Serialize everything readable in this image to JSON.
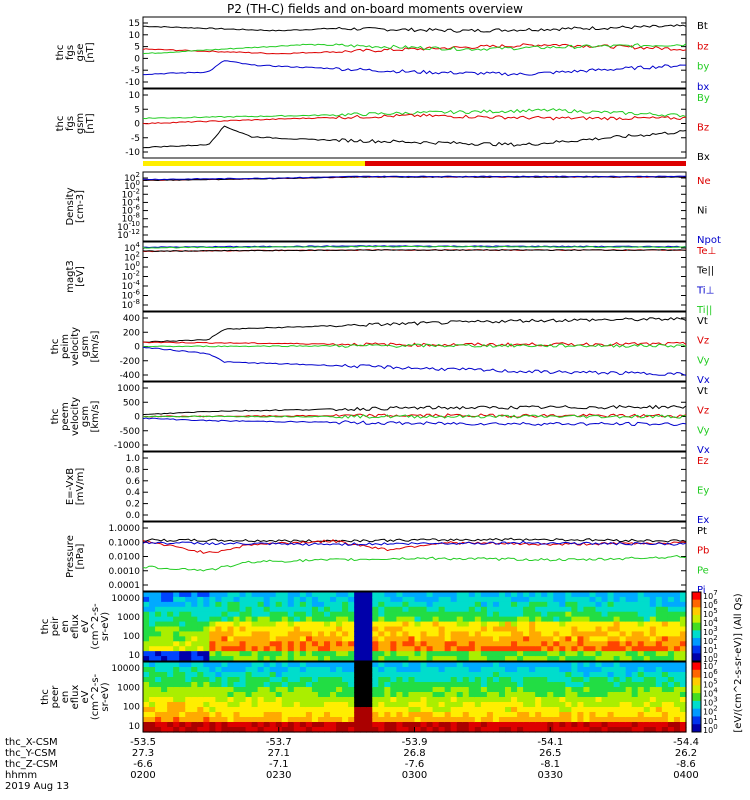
{
  "title": "P2 (TH-C) fields and on-board moments overview",
  "colors": {
    "black": "#000000",
    "red": "#dd0000",
    "green": "#22cc22",
    "blue": "#0000cc",
    "yellow": "#ffee00",
    "barred": "#dd0000"
  },
  "chart_data": [
    {
      "type": "line",
      "panel": "fgs_gse",
      "ylabel": [
        "thc",
        "fgs",
        "gse",
        "[nT]"
      ],
      "yticks": [
        "15",
        "10",
        "5",
        "0",
        "-5",
        "-10"
      ],
      "ylim": [
        -15,
        16
      ],
      "legend": [
        {
          "name": "Bt",
          "color": "#000000"
        },
        {
          "name": "bz",
          "color": "#dd0000"
        },
        {
          "name": "by",
          "color": "#22cc22"
        },
        {
          "name": "bx",
          "color": "#0000cc"
        }
      ],
      "series": [
        {
          "name": "Bt",
          "color": "#000000",
          "x": [
            0,
            0.25,
            0.35,
            0.6,
            0.8,
            1
          ],
          "y": [
            12,
            10,
            11,
            10,
            11,
            12
          ]
        },
        {
          "name": "bz",
          "color": "#dd0000",
          "x": [
            0,
            0.25,
            0.5,
            0.75,
            1
          ],
          "y": [
            2,
            0,
            2,
            4,
            2
          ]
        },
        {
          "name": "by",
          "color": "#22cc22",
          "x": [
            0,
            0.3,
            0.6,
            1
          ],
          "y": [
            0,
            4,
            2,
            4
          ]
        },
        {
          "name": "bx",
          "color": "#0000cc",
          "x": [
            0,
            0.12,
            0.15,
            0.2,
            0.3,
            0.5,
            0.7,
            1
          ],
          "y": [
            -9,
            -8,
            -3,
            -5,
            -6,
            -8,
            -9,
            -5
          ]
        }
      ]
    },
    {
      "type": "line",
      "panel": "fgs_gsm",
      "ylabel": [
        "thc",
        "fgs",
        "gsm",
        "[nT]"
      ],
      "yticks": [
        "10",
        "5",
        "0",
        "-5",
        "-10"
      ],
      "ylim": [
        -14,
        12
      ],
      "legend": [
        {
          "name": "By",
          "color": "#22cc22"
        },
        {
          "name": "Bz",
          "color": "#dd0000"
        },
        {
          "name": "Bx",
          "color": "#000000"
        }
      ],
      "series": [
        {
          "name": "By",
          "color": "#22cc22",
          "x": [
            0,
            0.3,
            0.5,
            0.75,
            1
          ],
          "y": [
            1,
            2,
            3,
            4,
            2
          ]
        },
        {
          "name": "Bz",
          "color": "#dd0000",
          "x": [
            0,
            0.3,
            0.5,
            0.75,
            1
          ],
          "y": [
            -1,
            1,
            2,
            1,
            1
          ]
        },
        {
          "name": "Bx",
          "color": "#000000",
          "x": [
            0,
            0.12,
            0.15,
            0.2,
            0.3,
            0.5,
            0.7,
            1
          ],
          "y": [
            -10,
            -9,
            -2,
            -6,
            -7,
            -8,
            -9,
            -4
          ]
        }
      ]
    },
    {
      "type": "line",
      "panel": "density",
      "ylabel": [
        "Density",
        "[cm-3]"
      ],
      "yticks": [
        "10^2",
        "10^0",
        "10^-2",
        "10^-4",
        "10^-6",
        "10^-8",
        "10^-10",
        "10^-12"
      ],
      "ylim": [
        -12,
        2
      ],
      "log": true,
      "legend": [
        {
          "name": "Ne",
          "color": "#dd0000"
        },
        {
          "name": "Ni",
          "color": "#000000"
        },
        {
          "name": "Npot",
          "color": "#0000cc"
        }
      ],
      "series": [
        {
          "name": "Ne",
          "color": "#dd0000",
          "x": [
            0,
            0.2,
            0.4,
            1
          ],
          "y": [
            0.3,
            0.6,
            1,
            1
          ]
        },
        {
          "name": "Ni",
          "color": "#000000",
          "x": [
            0,
            0.2,
            0.4,
            1
          ],
          "y": [
            0.3,
            0.6,
            1,
            1
          ]
        },
        {
          "name": "Npot",
          "color": "#0000cc",
          "x": [
            0,
            0.2,
            0.4,
            1
          ],
          "y": [
            0.5,
            0.7,
            1.1,
            1.1
          ]
        }
      ]
    },
    {
      "type": "line",
      "panel": "temperature",
      "ylabel": [
        "magt3",
        "[eV]"
      ],
      "yticks": [
        "10^4",
        "10^2",
        "10^0",
        "10^-2",
        "10^-4",
        "10^-6",
        "10^-8"
      ],
      "ylim": [
        -8,
        4
      ],
      "log": true,
      "legend": [
        {
          "name": "Te⊥",
          "color": "#dd0000"
        },
        {
          "name": "Te||",
          "color": "#000000"
        },
        {
          "name": "Ti⊥",
          "color": "#0000cc"
        },
        {
          "name": "Ti||",
          "color": "#22cc22"
        }
      ],
      "series": [
        {
          "name": "Te⊥",
          "color": "#dd0000",
          "x": [
            0,
            0.4,
            1
          ],
          "y": [
            2.4,
            2.6,
            2.6
          ]
        },
        {
          "name": "Te||",
          "color": "#000000",
          "x": [
            0,
            0.4,
            1
          ],
          "y": [
            2.4,
            2.6,
            2.6
          ]
        },
        {
          "name": "Ti⊥",
          "color": "#0000cc",
          "x": [
            0,
            0.4,
            1
          ],
          "y": [
            3.1,
            3.3,
            3.2
          ]
        },
        {
          "name": "Ti||",
          "color": "#22cc22",
          "x": [
            0,
            0.4,
            1
          ],
          "y": [
            3.0,
            3.2,
            3.1
          ]
        }
      ]
    },
    {
      "type": "line",
      "panel": "peim_velocity",
      "ylabel": [
        "thc",
        "peim",
        "velocity",
        "gsm",
        "[km/s]"
      ],
      "yticks": [
        "400",
        "200",
        "0",
        "-200",
        "-400"
      ],
      "ylim": [
        -400,
        400
      ],
      "legend": [
        {
          "name": "Vt",
          "color": "#000000"
        },
        {
          "name": "Vz",
          "color": "#dd0000"
        },
        {
          "name": "Vy",
          "color": "#22cc22"
        },
        {
          "name": "Vx",
          "color": "#0000cc"
        }
      ],
      "series": [
        {
          "name": "Vt",
          "color": "#000000",
          "x": [
            0,
            0.12,
            0.15,
            0.4,
            0.7,
            1
          ],
          "y": [
            50,
            80,
            200,
            250,
            300,
            320
          ]
        },
        {
          "name": "Vz",
          "color": "#dd0000",
          "x": [
            0,
            0.5,
            1
          ],
          "y": [
            50,
            20,
            30
          ]
        },
        {
          "name": "Vy",
          "color": "#22cc22",
          "x": [
            0,
            0.5,
            1
          ],
          "y": [
            0,
            10,
            10
          ]
        },
        {
          "name": "Vx",
          "color": "#0000cc",
          "x": [
            0,
            0.12,
            0.15,
            0.4,
            0.7,
            1
          ],
          "y": [
            -10,
            -80,
            -180,
            -230,
            -290,
            -320
          ]
        }
      ]
    },
    {
      "type": "line",
      "panel": "peem_velocity",
      "ylabel": [
        "thc",
        "peem",
        "velocity",
        "gsm",
        "[km/s]"
      ],
      "yticks": [
        "1000",
        "500",
        "0",
        "-500",
        "-1000"
      ],
      "ylim": [
        -1000,
        1000
      ],
      "legend": [
        {
          "name": "Vt",
          "color": "#000000"
        },
        {
          "name": "Vz",
          "color": "#dd0000"
        },
        {
          "name": "Vy",
          "color": "#22cc22"
        },
        {
          "name": "Vx",
          "color": "#0000cc"
        }
      ],
      "series": [
        {
          "name": "Vt",
          "color": "#000000",
          "x": [
            0,
            0.12,
            0.5,
            1
          ],
          "y": [
            50,
            150,
            250,
            280
          ]
        },
        {
          "name": "Vz",
          "color": "#dd0000",
          "x": [
            0,
            0.5,
            1
          ],
          "y": [
            0,
            30,
            20
          ]
        },
        {
          "name": "Vy",
          "color": "#22cc22",
          "x": [
            0,
            0.5,
            1
          ],
          "y": [
            0,
            0,
            0
          ]
        },
        {
          "name": "Vx",
          "color": "#0000cc",
          "x": [
            0,
            0.12,
            0.5,
            1
          ],
          "y": [
            -50,
            -120,
            -200,
            -220
          ]
        }
      ]
    },
    {
      "type": "line",
      "panel": "efield",
      "ylabel": [
        "E=-VxB",
        "[mV/m]"
      ],
      "yticks": [
        "1.0",
        "0.8",
        "0.6",
        "0.4",
        "0.2",
        "0.0"
      ],
      "ylim": [
        0,
        1
      ],
      "legend": [
        {
          "name": "Ez",
          "color": "#dd0000"
        },
        {
          "name": "Ey",
          "color": "#22cc22"
        },
        {
          "name": "Ex",
          "color": "#0000cc"
        }
      ],
      "series": []
    },
    {
      "type": "line",
      "panel": "pressure",
      "ylabel": [
        "Pressure",
        "[nPa]"
      ],
      "yticks": [
        "1.0000",
        "0.1000",
        "0.0100",
        "0.0010",
        "0.0001"
      ],
      "ylim": [
        -4,
        0
      ],
      "log": true,
      "legend": [
        {
          "name": "Pt",
          "color": "#000000"
        },
        {
          "name": "Pb",
          "color": "#dd0000"
        },
        {
          "name": "Pe",
          "color": "#22cc22"
        },
        {
          "name": "Pi",
          "color": "#0000cc"
        }
      ],
      "series": [
        {
          "name": "Pt",
          "color": "#000000",
          "x": [
            0,
            0.3,
            0.7,
            1
          ],
          "y": [
            -1.05,
            -1.1,
            -1.0,
            -1.1
          ]
        },
        {
          "name": "Pb",
          "color": "#dd0000",
          "x": [
            0,
            0.12,
            0.2,
            0.35,
            0.45,
            0.55,
            0.75,
            1
          ],
          "y": [
            -1.1,
            -1.8,
            -1.3,
            -1.1,
            -1.6,
            -1.2,
            -1.3,
            -1.2
          ]
        },
        {
          "name": "Pe",
          "color": "#22cc22",
          "x": [
            0,
            0.12,
            0.2,
            0.5,
            0.8,
            1
          ],
          "y": [
            -2.6,
            -2.8,
            -2.3,
            -2.1,
            -2.2,
            -2.0
          ]
        },
        {
          "name": "Pi",
          "color": "#0000cc",
          "x": [
            0,
            0.3,
            0.7,
            1
          ],
          "y": [
            -1.2,
            -1.3,
            -1.2,
            -1.3
          ]
        }
      ]
    },
    {
      "type": "heatmap",
      "panel": "peir_spectrogram",
      "ylabel": [
        "thc",
        "peir",
        "en",
        "eflux",
        "eV",
        "(cm^2-s-",
        "sr-eV)"
      ],
      "yticks": [
        "10000",
        "1000",
        "100",
        "10"
      ]
    },
    {
      "type": "heatmap",
      "panel": "peer_spectrogram",
      "ylabel": [
        "thc",
        "peer",
        "en",
        "eflux",
        "eV",
        "(cm^2-s-",
        "sr-eV)"
      ],
      "yticks": [
        "10000",
        "1000",
        "100",
        "10"
      ]
    }
  ],
  "colorbar": {
    "label": "[eV/(cm^2-s-sr-eV)] (All Qs)",
    "ticks_top": [
      "10^7",
      "10^6",
      "10^5",
      "10^4",
      "10^3",
      "10^2",
      "10^1",
      "10^0"
    ],
    "ticks_bottom": [
      "10^7",
      "10^6",
      "10^5",
      "10^4",
      "10^3",
      "10^2",
      "10^1",
      "10^0"
    ]
  },
  "time_axis": {
    "rows": [
      {
        "label": "thc_X-CSM",
        "values": [
          "-53.5",
          "-53.7",
          "-53.9",
          "-54.1",
          "-54.4"
        ]
      },
      {
        "label": "thc_Y-CSM",
        "values": [
          "27.3",
          "27.1",
          "26.8",
          "26.5",
          "26.2"
        ]
      },
      {
        "label": "thc_Z-CSM",
        "values": [
          "-6.6",
          "-7.1",
          "-7.6",
          "-8.1",
          "-8.6"
        ]
      },
      {
        "label": "hhmm",
        "values": [
          "0200",
          "0230",
          "0300",
          "0330",
          "0400"
        ]
      }
    ],
    "date": "2019 Aug 13"
  }
}
